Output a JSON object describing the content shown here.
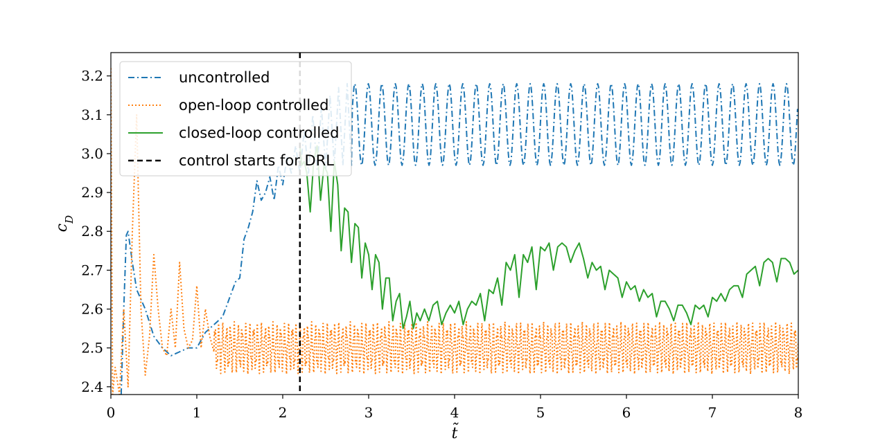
{
  "chart_data": {
    "type": "line",
    "xlabel": "t̃",
    "ylabel": "c_D",
    "xlim": [
      0,
      8
    ],
    "ylim": [
      2.38,
      3.26
    ],
    "xticks": [
      0,
      1,
      2,
      3,
      4,
      5,
      6,
      7,
      8
    ],
    "yticks": [
      2.4,
      2.5,
      2.6,
      2.7,
      2.8,
      2.9,
      3.0,
      3.1,
      3.2
    ],
    "grid": false,
    "legend_position": "top-left",
    "series": [
      {
        "name": "uncontrolled",
        "color": "#1f77b4",
        "style": "dashdot",
        "x": [
          0.12,
          0.15,
          0.18,
          0.2,
          0.25,
          0.3,
          0.4,
          0.5,
          0.6,
          0.7,
          0.8,
          0.9,
          1.0,
          1.1,
          1.2,
          1.3,
          1.35,
          1.4,
          1.45,
          1.5,
          1.55,
          1.6,
          1.65,
          1.7,
          1.75,
          1.8,
          1.85,
          1.9,
          1.95,
          2.0,
          2.05,
          2.1,
          2.15,
          2.2,
          2.25,
          2.3,
          2.35,
          2.4,
          2.45,
          2.5,
          2.55,
          2.6,
          2.65,
          2.7,
          2.75,
          2.8,
          8.0
        ],
        "y": [
          2.38,
          2.6,
          2.79,
          2.8,
          2.72,
          2.65,
          2.6,
          2.53,
          2.5,
          2.48,
          2.49,
          2.5,
          2.5,
          2.54,
          2.56,
          2.58,
          2.61,
          2.64,
          2.67,
          2.68,
          2.78,
          2.81,
          2.85,
          2.93,
          2.88,
          2.9,
          2.94,
          2.88,
          2.97,
          2.92,
          2.99,
          2.95,
          3.02,
          2.95,
          3.06,
          2.95,
          3.1,
          2.96,
          3.12,
          2.96,
          3.15,
          2.97,
          3.17,
          2.97,
          3.18,
          2.97,
          3.08
        ],
        "oscillation_after_x": 2.8,
        "oscillation_min": 2.97,
        "oscillation_max": 3.18,
        "oscillation_period": 0.157
      },
      {
        "name": "open-loop controlled",
        "color": "#ff7f0e",
        "style": "dotted",
        "x": [
          0.0,
          0.02,
          0.05,
          0.1,
          0.15,
          0.2,
          0.25,
          0.3,
          0.35,
          0.4,
          0.45,
          0.5,
          0.55,
          0.6,
          0.65,
          0.7,
          0.75,
          0.8,
          0.85,
          0.9,
          0.95,
          1.0,
          1.05,
          1.1,
          1.15,
          1.2,
          1.3,
          1.4,
          1.5,
          1.7,
          2.0,
          2.5,
          3.0,
          4.0,
          5.0,
          6.0,
          7.0,
          8.0
        ],
        "y": [
          3.22,
          2.38,
          2.45,
          2.38,
          2.6,
          2.4,
          2.8,
          3.1,
          2.6,
          2.43,
          2.53,
          2.74,
          2.6,
          2.5,
          2.48,
          2.6,
          2.5,
          2.72,
          2.55,
          2.5,
          2.52,
          2.66,
          2.5,
          2.6,
          2.53,
          2.49,
          2.55,
          2.57,
          2.58,
          2.55,
          2.53,
          2.53,
          2.52,
          2.51,
          2.51,
          2.51,
          2.5,
          2.5
        ],
        "oscillation_after_x": 1.2,
        "oscillation_min": 2.45,
        "oscillation_max": 2.55,
        "oscillation_period": 0.045
      },
      {
        "name": "closed-loop controlled",
        "color": "#2ca02c",
        "style": "solid",
        "x": [
          2.2,
          2.22,
          2.25,
          2.28,
          2.32,
          2.36,
          2.4,
          2.44,
          2.48,
          2.52,
          2.56,
          2.6,
          2.64,
          2.68,
          2.72,
          2.76,
          2.8,
          2.84,
          2.88,
          2.92,
          2.96,
          3.0,
          3.04,
          3.08,
          3.12,
          3.16,
          3.2,
          3.24,
          3.28,
          3.32,
          3.36,
          3.4,
          3.44,
          3.48,
          3.52,
          3.56,
          3.6,
          3.65,
          3.7,
          3.75,
          3.8,
          3.85,
          3.9,
          3.95,
          4.0,
          4.05,
          4.1,
          4.15,
          4.2,
          4.25,
          4.3,
          4.35,
          4.4,
          4.45,
          4.5,
          4.55,
          4.6,
          4.65,
          4.7,
          4.75,
          4.8,
          4.85,
          4.9,
          4.95,
          5.0,
          5.05,
          5.1,
          5.15,
          5.2,
          5.25,
          5.3,
          5.35,
          5.4,
          5.45,
          5.5,
          5.55,
          5.6,
          5.65,
          5.7,
          5.75,
          5.8,
          5.85,
          5.9,
          5.95,
          6.0,
          6.05,
          6.1,
          6.15,
          6.2,
          6.25,
          6.3,
          6.35,
          6.4,
          6.45,
          6.5,
          6.55,
          6.6,
          6.65,
          6.7,
          6.75,
          6.8,
          6.85,
          6.9,
          6.95,
          7.0,
          7.05,
          7.1,
          7.15,
          7.2,
          7.25,
          7.3,
          7.35,
          7.4,
          7.45,
          7.5,
          7.55,
          7.6,
          7.65,
          7.7,
          7.75,
          7.8,
          7.85,
          7.9,
          7.95,
          8.0
        ],
        "y": [
          3.02,
          2.97,
          2.98,
          2.95,
          2.85,
          2.98,
          3.02,
          2.88,
          2.97,
          2.95,
          2.8,
          2.98,
          2.92,
          2.75,
          2.86,
          2.85,
          2.72,
          2.82,
          2.81,
          2.68,
          2.77,
          2.74,
          2.65,
          2.74,
          2.72,
          2.6,
          2.68,
          2.68,
          2.57,
          2.62,
          2.64,
          2.55,
          2.58,
          2.62,
          2.55,
          2.59,
          2.57,
          2.6,
          2.57,
          2.61,
          2.62,
          2.56,
          2.59,
          2.61,
          2.59,
          2.62,
          2.56,
          2.6,
          2.62,
          2.61,
          2.64,
          2.57,
          2.65,
          2.64,
          2.68,
          2.61,
          2.72,
          2.7,
          2.74,
          2.63,
          2.74,
          2.72,
          2.76,
          2.65,
          2.76,
          2.75,
          2.77,
          2.7,
          2.76,
          2.77,
          2.76,
          2.72,
          2.75,
          2.77,
          2.73,
          2.68,
          2.72,
          2.7,
          2.71,
          2.65,
          2.7,
          2.69,
          2.68,
          2.63,
          2.67,
          2.65,
          2.66,
          2.62,
          2.65,
          2.63,
          2.64,
          2.58,
          2.62,
          2.62,
          2.6,
          2.57,
          2.61,
          2.61,
          2.59,
          2.56,
          2.61,
          2.6,
          2.61,
          2.58,
          2.63,
          2.62,
          2.64,
          2.62,
          2.65,
          2.66,
          2.66,
          2.63,
          2.69,
          2.7,
          2.71,
          2.66,
          2.72,
          2.73,
          2.72,
          2.67,
          2.73,
          2.73,
          2.72,
          2.69,
          2.7
        ]
      },
      {
        "name": "control starts for DRL",
        "color": "#000000",
        "style": "dashed",
        "vline_x": 2.2
      }
    ]
  }
}
